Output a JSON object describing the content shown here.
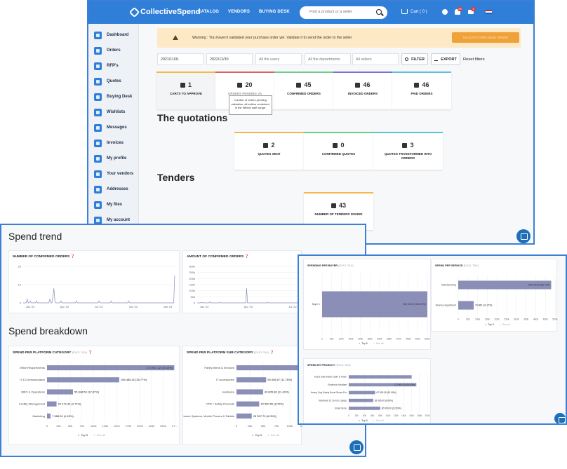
{
  "topbar": {
    "brand": "CollectiveSpend",
    "nav": [
      "CATALOG",
      "VENDORS",
      "BUYING DESK"
    ],
    "search_placeholder": "Find a product or a seller",
    "cart_label": "Cart ( 0 )",
    "notif_badge": "99",
    "mail_badge": "4"
  },
  "sidebar": {
    "items": [
      "Dashboard",
      "Orders",
      "RFP's",
      "Quotes",
      "Buying Desk",
      "Wishlists",
      "Messages",
      "Invoices",
      "My profile",
      "Your vendors",
      "Addresses",
      "My files",
      "My account"
    ]
  },
  "warning": {
    "text": "Warning : You haven't validated your purchase order yet. Validate it to send the order to the seller",
    "button": "VALIDATE PURCHASE ORDER"
  },
  "filters": {
    "date_from": "2021/11/01",
    "date_to": "2022/12/30",
    "users_placeholder": "All the users",
    "departments_placeholder": "All the departments",
    "sellers_placeholder": "All sellers",
    "filter_btn": "FILTER",
    "export_btn": "EXPORT",
    "reset": "Reset filters"
  },
  "orders_kpis": [
    {
      "value": "1",
      "label": "CARTS TO APPROVE",
      "color": "#f2b94a"
    },
    {
      "value": "20",
      "label": "ORDERS PENDING VA",
      "color": "#e06060"
    },
    {
      "value": "45",
      "label": "CONFIRMED ORDERS",
      "color": "#6ccf8c"
    },
    {
      "value": "46",
      "label": "INVOICED ORDERS",
      "color": "#7c6fd8"
    },
    {
      "value": "46",
      "label": "PAID ORDERS",
      "color": "#58c4d8"
    }
  ],
  "tooltip": "number of orders pending validation, all sellers combined, in the filtered date range.",
  "quotations": {
    "title": "The quotations",
    "kpis": [
      {
        "value": "2",
        "label": "QUOTES SENT",
        "color": "#f2b94a"
      },
      {
        "value": "0",
        "label": "CONFIRMED QUOTES",
        "color": "#6ccf8c"
      },
      {
        "value": "3",
        "label": "QUOTES TRANSFORMED INTO ORDERS",
        "color": "#58c4d8"
      }
    ]
  },
  "tenders": {
    "title": "Tenders",
    "kpis": [
      {
        "value": "43",
        "label": "NUMBER OF TENDERS ISSUED",
        "color": "#f2b94a"
      }
    ]
  },
  "spend_trend": {
    "title": "Spend trend",
    "confirmed_orders_title": "NUMBER OF CONFIRMED ORDERS",
    "confirmed_amount_title": "AMOUNT OF CONFIRMED ORDERS"
  },
  "spend_breakdown": {
    "title": "Spend breakdown",
    "category_title": "SPEND PER PLATFORM CATEGORY",
    "subcategory_title": "SPEND PER PLATFORM SUB CATEGORY",
    "unit_hint": "(EXCL TAX)"
  },
  "right_panel": {
    "buyer_title": "SPENDING PER BUYER",
    "service_title": "SPEND PER SERVICE",
    "product_title": "SPEND BY PRODUCT",
    "unit_hint": "(EXCL TAX)"
  },
  "legend": {
    "top": "Top 5",
    "all": "See all"
  },
  "chart_data": [
    {
      "type": "line",
      "title": "NUMBER OF CONFIRMED ORDERS",
      "x_ticks": [
        "Jan '22",
        "Apr '22",
        "Jul '22",
        "Oct '22",
        "Jan '23"
      ],
      "y_ticks": [
        0,
        10,
        20
      ],
      "ylim": [
        0,
        20
      ],
      "values": [
        0,
        0,
        0,
        0,
        2,
        0,
        0,
        1,
        0,
        0,
        0,
        0,
        0,
        1,
        0,
        0,
        0,
        0,
        0,
        0,
        0,
        0,
        0,
        0,
        0,
        0,
        2,
        0,
        0,
        3,
        8,
        1,
        0,
        0,
        0,
        0,
        0,
        1,
        0,
        0,
        0,
        0,
        0,
        0,
        0,
        0,
        0,
        0,
        0,
        0,
        0,
        0,
        1,
        0,
        0,
        0,
        0,
        0,
        0,
        0,
        0,
        0,
        0,
        0,
        0,
        0,
        0,
        0,
        0,
        0,
        0,
        0,
        0,
        0,
        1,
        0,
        0,
        0,
        0,
        0,
        0,
        0,
        0,
        0,
        0,
        0,
        1,
        0,
        0,
        0,
        0,
        0,
        0,
        0,
        0,
        0,
        0,
        0,
        0,
        0,
        0,
        0,
        0,
        1,
        0,
        0,
        0,
        0,
        0,
        0,
        0,
        0,
        0,
        0,
        0,
        0,
        0,
        0,
        0,
        0,
        0,
        0,
        0,
        0,
        0,
        0,
        0,
        0,
        0,
        0,
        0,
        0,
        0,
        0,
        0,
        0,
        0,
        0,
        0,
        0,
        0,
        0,
        0,
        0,
        0,
        0,
        0,
        0,
        15
      ]
    },
    {
      "type": "line",
      "title": "AMOUNT OF CONFIRMED ORDERS",
      "x_ticks": [
        "Jan '22",
        "Apr '22",
        "Jul '22"
      ],
      "y_ticks": [
        "0",
        "50k",
        "100k",
        "150k",
        "200k",
        "250k",
        "300k"
      ],
      "ylim": [
        0,
        300000
      ],
      "values": [
        0,
        0,
        0,
        0,
        5000,
        0,
        0,
        2000,
        0,
        0,
        0,
        0,
        0,
        0,
        8000,
        0,
        0,
        0,
        0,
        0,
        0,
        0,
        0,
        0,
        0,
        3000,
        0,
        0,
        0,
        0,
        0,
        0,
        0,
        0,
        0,
        0,
        0,
        0,
        0,
        0,
        0,
        0,
        0,
        0,
        0,
        0,
        0,
        0,
        0,
        0,
        0,
        0,
        0,
        0,
        0,
        120000,
        0,
        0,
        0,
        0,
        0,
        0,
        0,
        0,
        0,
        0,
        0,
        0,
        0,
        0,
        0,
        0,
        0,
        0,
        0,
        0,
        0,
        0,
        4000,
        0,
        0,
        0,
        0,
        0,
        0,
        0,
        0,
        0,
        0,
        0,
        0,
        0,
        0,
        0,
        0,
        0,
        0,
        0,
        0,
        0,
        0,
        0,
        0,
        0,
        0,
        0,
        0,
        0,
        0,
        0,
        0,
        0,
        0,
        0,
        0
      ]
    },
    {
      "type": "bar",
      "orientation": "horizontal",
      "title": "SPEND PER PLATFORM CATEGORY",
      "categories": [
        "Office Requirements",
        "IT & Communication",
        "MRO & Operations",
        "Facility Management",
        "Marketing"
      ],
      "values": [
        273957.22,
        155485.42,
        55848.5,
        20474.4,
        7588.0
      ],
      "labels": [
        "273 957.22 (49.15%)",
        "155 485.42 (26.77%)",
        "55 848.50 (12.87%)",
        "20 474.40 (4.71%)",
        "7 588.00 (1.63%)"
      ],
      "x_ticks": [
        "0",
        "25k",
        "50k",
        "75k",
        "100k",
        "125k",
        "150k",
        "175k",
        "200k",
        "225k",
        "250k",
        "27..."
      ],
      "xlim": [
        0,
        275000
      ]
    },
    {
      "type": "bar",
      "orientation": "horizontal",
      "title": "SPEND PER PLATFORM SUB CATEGORY",
      "categories": [
        "Pantry Items & Services",
        "IT Accessories",
        "Hardware",
        "PPE / Safety Products",
        "Phones Systems, Mobile Phones & Tablets"
      ],
      "values": [
        130000,
        55556.67,
        49835.8,
        42560.5,
        28557.7
      ],
      "labels": [
        "",
        "55 556.67 (11.78%)",
        "49 835.80 (11.40%)",
        "42 560.50 (8.79%)",
        "28 557.70 (6.05%)"
      ],
      "x_ticks": [
        "0",
        "25k",
        "50k",
        "75k",
        "100k",
        "125k",
        "150k"
      ],
      "xlim": [
        0,
        150000
      ]
    },
    {
      "type": "bar",
      "orientation": "horizontal",
      "title": "SPENDING PER BUYER",
      "categories": [
        "Buyer 1"
      ],
      "values": [
        560000
      ],
      "labels": [
        "560 000.00 (100.00%)"
      ],
      "x_ticks": [
        "0",
        "50k",
        "100k",
        "150k",
        "200k",
        "250k",
        "300k",
        "350k",
        "400k",
        "450k",
        "500k",
        "550k"
      ],
      "xlim": [
        0,
        560000
      ]
    },
    {
      "type": "bar",
      "orientation": "horizontal",
      "title": "SPEND PER SERVICE",
      "categories": [
        "Manufacturing",
        "Finance department"
      ],
      "values": [
        480000,
        79860
      ],
      "labels": [
        "480 000.00 (85.73%)",
        "79 860 (14.27%)"
      ],
      "x_ticks": [
        "0",
        "50k",
        "100k",
        "150k",
        "200k",
        "250k",
        "300k",
        "350k",
        "400k",
        "450k",
        "500k"
      ],
      "xlim": [
        0,
        500000
      ]
    },
    {
      "type": "bar",
      "orientation": "horizontal",
      "title": "SPEND BY PRODUCT",
      "categories": [
        "Insect Gate Metal Cable & Patch",
        "Electronic Headset",
        "Heavy Duty Safety Boots Shoes Pro",
        "Notebook 15 16 inch Laptop",
        "Smart Items"
      ],
      "values": [
        160000,
        172000,
        67000,
        62000,
        80000
      ],
      "labels": [
        "",
        "172 000.00 (25.00%)",
        "67 000.00 (10.00%)",
        "62 000.00 (9.00%)",
        "80 000.00 (12.00%)"
      ],
      "x_ticks": [
        "0",
        "20k",
        "40k",
        "60k",
        "80k",
        "100k",
        "120k",
        "140k",
        "160k",
        "180k",
        "200k"
      ],
      "xlim": [
        0,
        200000
      ]
    }
  ]
}
